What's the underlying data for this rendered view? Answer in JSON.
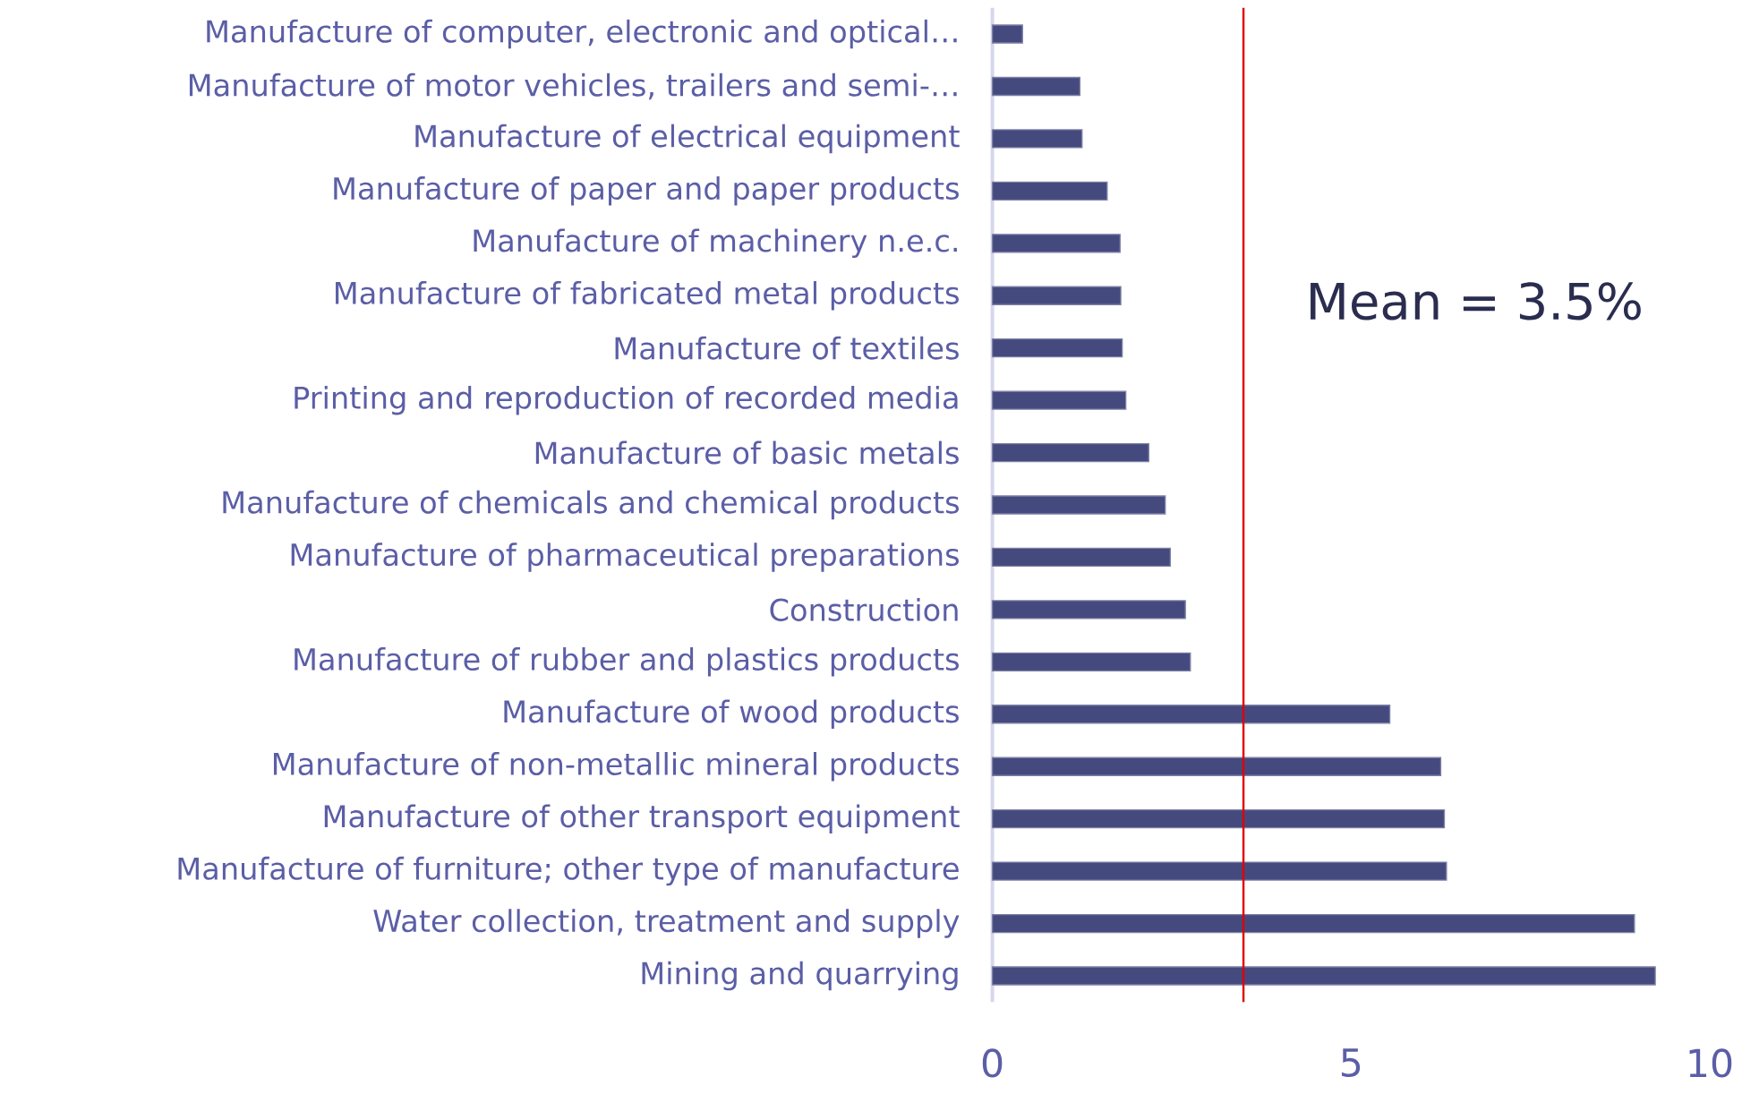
{
  "chart_data": {
    "type": "bar",
    "orientation": "horizontal",
    "categories": [
      "Manufacture of computer, electronic and optical…",
      "Manufacture of motor vehicles, trailers and semi-…",
      "Manufacture of electrical equipment",
      "Manufacture of paper and paper products",
      "Manufacture of machinery n.e.c.",
      "Manufacture of fabricated metal products",
      "Manufacture of textiles",
      "Printing and reproduction of recorded media",
      "Manufacture of basic metals",
      "Manufacture of chemicals and chemical products",
      "Manufacture of pharmaceutical preparations",
      "Construction",
      "Manufacture of rubber and plastics products",
      "Manufacture of wood products",
      "Manufacture of non-metallic mineral products",
      "Manufacture of other transport equipment",
      "Manufacture of furniture; other type of manufacture",
      "Water collection, treatment and supply",
      "Mining and quarrying"
    ],
    "values": [
      0.42,
      1.22,
      1.25,
      1.6,
      1.78,
      1.79,
      1.81,
      1.86,
      2.18,
      2.41,
      2.48,
      2.69,
      2.76,
      5.54,
      6.25,
      6.3,
      6.33,
      8.95,
      9.24
    ],
    "color": "#454a7e",
    "xlim": [
      0,
      10
    ],
    "xticks": [
      0,
      5,
      10
    ],
    "ref_lines": [
      {
        "axis": "x",
        "value": 3.5,
        "label": "Mean = 3.5%",
        "color": "#e00000"
      }
    ]
  }
}
